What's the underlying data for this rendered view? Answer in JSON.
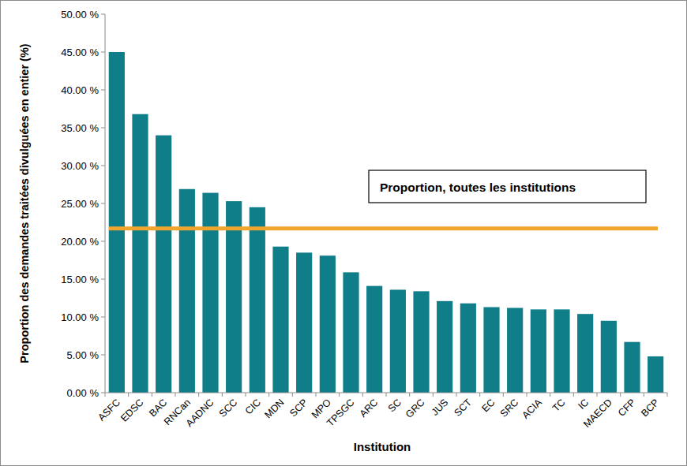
{
  "chart_data": {
    "type": "bar",
    "xlabel": "Institution",
    "ylabel": "Proportion des demandes traitées divulguées en entier (%)",
    "categories": [
      "ASFC",
      "EDSC",
      "BAC",
      "RNCan",
      "AADNC",
      "SCC",
      "CIC",
      "MDN",
      "SCP",
      "MPO",
      "TPSGC",
      "ARC",
      "SC",
      "GRC",
      "JUS",
      "SCT",
      "EC",
      "SRC",
      "ACIA",
      "TC",
      "IC",
      "MAECD",
      "CFP",
      "BCP"
    ],
    "values": [
      45.0,
      36.8,
      34.0,
      26.9,
      26.4,
      25.3,
      24.5,
      19.3,
      18.5,
      18.1,
      15.9,
      14.1,
      13.6,
      13.4,
      12.1,
      11.8,
      11.3,
      11.2,
      11.0,
      11.0,
      10.4,
      9.5,
      6.7,
      4.8
    ],
    "color": "#0f7e89",
    "ylim": [
      0,
      50
    ],
    "yticks": [
      {
        "value": 0,
        "label": "0.00 %"
      },
      {
        "value": 5,
        "label": "5.00 %"
      },
      {
        "value": 10,
        "label": "10.00 %"
      },
      {
        "value": 15,
        "label": "15.00 %"
      },
      {
        "value": 20,
        "label": "20.00 %"
      },
      {
        "value": 25,
        "label": "25.00 %"
      },
      {
        "value": 30,
        "label": "30.00 %"
      },
      {
        "value": 35,
        "label": "35.00 %"
      },
      {
        "value": 40,
        "label": "40.00 %"
      },
      {
        "value": 45,
        "label": "45.00 %"
      },
      {
        "value": 50,
        "label": "50.00 %"
      }
    ],
    "grid": false,
    "annotations": [
      {
        "text": "Proportion, toutes les institutions",
        "value": 21.7,
        "color": "#f0a52e"
      }
    ]
  }
}
